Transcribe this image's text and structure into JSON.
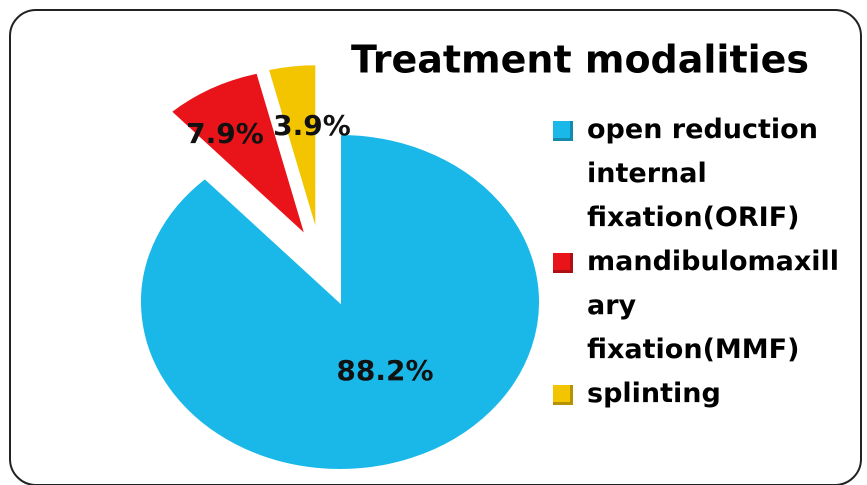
{
  "chart_data": {
    "type": "pie",
    "title": "Treatment modalities",
    "categories": [
      "open reduction internal fixation(ORIF)",
      "mandibulomaxillary fixation(MMF)",
      "splinting"
    ],
    "values": [
      88.2,
      7.9,
      3.9
    ],
    "value_labels": [
      "88.2%",
      "7.9%",
      "3.9%"
    ],
    "colors": [
      "#1ab8e8",
      "#e8141a",
      "#f2c500"
    ],
    "legend": "right"
  }
}
